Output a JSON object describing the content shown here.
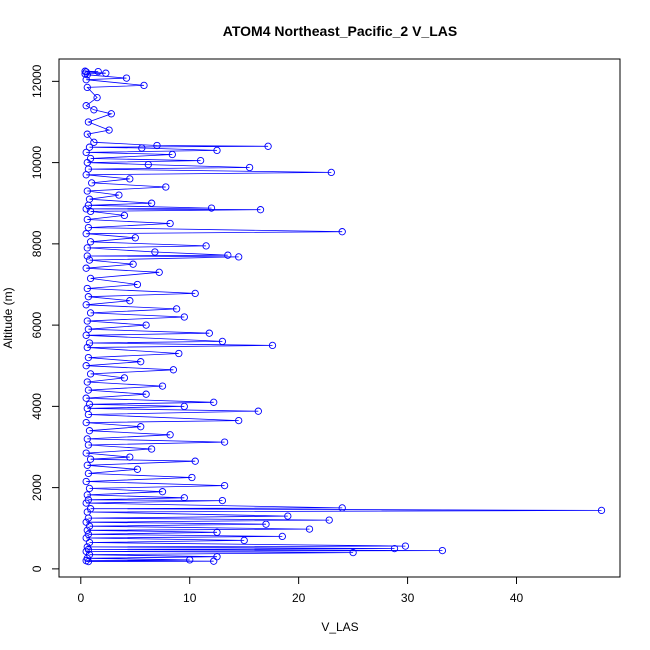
{
  "chart_data": {
    "type": "line",
    "title": "ATOM4 Northeast_Pacific_2 V_LAS",
    "xlabel": "V_LAS",
    "ylabel": "Altitude (m)",
    "xlim": [
      -2.0,
      49.5
    ],
    "ylim": [
      -200,
      12550
    ],
    "x_ticks": [
      0,
      10,
      20,
      30,
      40
    ],
    "y_ticks": [
      0,
      2000,
      4000,
      6000,
      8000,
      10000,
      12000
    ],
    "x_tick_labels": [
      "0",
      "10",
      "20",
      "30",
      "40"
    ],
    "y_tick_labels": [
      "0",
      "2000",
      "4000",
      "6000",
      "8000",
      "10000",
      "12000"
    ],
    "grid": false,
    "legend": "none",
    "marker": "open-circle",
    "colors": {
      "series": "#0000ff",
      "axis": "#000000",
      "background": "#ffffff"
    },
    "series": [
      {
        "points": [
          [
            0.4,
            12250
          ],
          [
            1.6,
            12240
          ],
          [
            0.5,
            12230
          ],
          [
            2.3,
            12200
          ],
          [
            0.4,
            12180
          ],
          [
            0.6,
            12160
          ],
          [
            4.2,
            12080
          ],
          [
            0.5,
            12040
          ],
          [
            5.8,
            11900
          ],
          [
            0.6,
            11850
          ],
          [
            1.5,
            11600
          ],
          [
            0.5,
            11400
          ],
          [
            1.2,
            11300
          ],
          [
            2.8,
            11200
          ],
          [
            0.7,
            11000
          ],
          [
            2.6,
            10800
          ],
          [
            0.6,
            10700
          ],
          [
            1.2,
            10500
          ],
          [
            7.0,
            10420
          ],
          [
            17.2,
            10400
          ],
          [
            0.8,
            10380
          ],
          [
            5.6,
            10360
          ],
          [
            12.5,
            10300
          ],
          [
            0.5,
            10250
          ],
          [
            8.4,
            10200
          ],
          [
            0.9,
            10100
          ],
          [
            11.0,
            10050
          ],
          [
            0.6,
            10000
          ],
          [
            6.2,
            9950
          ],
          [
            15.5,
            9880
          ],
          [
            0.7,
            9840
          ],
          [
            23.0,
            9760
          ],
          [
            0.5,
            9700
          ],
          [
            4.5,
            9600
          ],
          [
            1.0,
            9500
          ],
          [
            7.8,
            9400
          ],
          [
            0.6,
            9300
          ],
          [
            3.5,
            9200
          ],
          [
            0.8,
            9100
          ],
          [
            6.5,
            9000
          ],
          [
            0.7,
            8950
          ],
          [
            12.0,
            8880
          ],
          [
            0.5,
            8860
          ],
          [
            16.5,
            8840
          ],
          [
            0.9,
            8800
          ],
          [
            4.0,
            8700
          ],
          [
            0.6,
            8600
          ],
          [
            8.2,
            8500
          ],
          [
            0.7,
            8400
          ],
          [
            24.0,
            8300
          ],
          [
            0.5,
            8250
          ],
          [
            5.0,
            8150
          ],
          [
            0.9,
            8050
          ],
          [
            11.5,
            7950
          ],
          [
            0.6,
            7900
          ],
          [
            6.8,
            7800
          ],
          [
            13.5,
            7720
          ],
          [
            0.6,
            7700
          ],
          [
            14.5,
            7680
          ],
          [
            0.8,
            7600
          ],
          [
            4.8,
            7500
          ],
          [
            0.5,
            7400
          ],
          [
            7.2,
            7300
          ],
          [
            0.9,
            7150
          ],
          [
            5.2,
            7000
          ],
          [
            0.6,
            6900
          ],
          [
            10.5,
            6780
          ],
          [
            0.7,
            6700
          ],
          [
            4.5,
            6600
          ],
          [
            0.5,
            6500
          ],
          [
            8.8,
            6400
          ],
          [
            0.9,
            6300
          ],
          [
            9.5,
            6200
          ],
          [
            0.6,
            6100
          ],
          [
            6.0,
            6000
          ],
          [
            0.7,
            5900
          ],
          [
            11.8,
            5800
          ],
          [
            0.5,
            5750
          ],
          [
            13.0,
            5600
          ],
          [
            0.8,
            5560
          ],
          [
            17.6,
            5500
          ],
          [
            0.6,
            5450
          ],
          [
            9.0,
            5300
          ],
          [
            0.7,
            5200
          ],
          [
            5.5,
            5100
          ],
          [
            0.5,
            5000
          ],
          [
            8.5,
            4900
          ],
          [
            0.9,
            4800
          ],
          [
            4.0,
            4700
          ],
          [
            0.6,
            4600
          ],
          [
            7.5,
            4500
          ],
          [
            0.7,
            4400
          ],
          [
            6.0,
            4300
          ],
          [
            0.5,
            4200
          ],
          [
            12.2,
            4100
          ],
          [
            0.8,
            4050
          ],
          [
            9.5,
            4000
          ],
          [
            0.6,
            3950
          ],
          [
            16.3,
            3880
          ],
          [
            0.7,
            3800
          ],
          [
            14.5,
            3650
          ],
          [
            0.5,
            3600
          ],
          [
            5.5,
            3500
          ],
          [
            0.8,
            3400
          ],
          [
            8.2,
            3300
          ],
          [
            0.6,
            3200
          ],
          [
            13.2,
            3120
          ],
          [
            0.7,
            3050
          ],
          [
            6.5,
            2950
          ],
          [
            0.5,
            2850
          ],
          [
            4.5,
            2750
          ],
          [
            0.9,
            2700
          ],
          [
            10.5,
            2650
          ],
          [
            0.6,
            2550
          ],
          [
            5.2,
            2450
          ],
          [
            0.7,
            2350
          ],
          [
            10.2,
            2250
          ],
          [
            0.5,
            2150
          ],
          [
            13.2,
            2050
          ],
          [
            0.8,
            1980
          ],
          [
            7.5,
            1900
          ],
          [
            0.6,
            1820
          ],
          [
            9.5,
            1750
          ],
          [
            0.7,
            1700
          ],
          [
            13.0,
            1680
          ],
          [
            0.5,
            1620
          ],
          [
            24.0,
            1500
          ],
          [
            0.9,
            1480
          ],
          [
            47.8,
            1440
          ],
          [
            0.6,
            1400
          ],
          [
            19.0,
            1300
          ],
          [
            0.7,
            1250
          ],
          [
            22.8,
            1200
          ],
          [
            0.5,
            1150
          ],
          [
            17.0,
            1100
          ],
          [
            0.8,
            1050
          ],
          [
            21.0,
            980
          ],
          [
            0.6,
            950
          ],
          [
            12.5,
            900
          ],
          [
            0.7,
            850
          ],
          [
            18.5,
            800
          ],
          [
            0.5,
            760
          ],
          [
            15.0,
            700
          ],
          [
            0.8,
            650
          ],
          [
            29.8,
            560
          ],
          [
            0.6,
            540
          ],
          [
            28.8,
            500
          ],
          [
            0.7,
            480
          ],
          [
            33.2,
            450
          ],
          [
            0.5,
            430
          ],
          [
            25.0,
            400
          ],
          [
            0.8,
            350
          ],
          [
            12.5,
            300
          ],
          [
            0.6,
            260
          ],
          [
            10.0,
            220
          ],
          [
            0.5,
            200
          ],
          [
            12.2,
            190
          ],
          [
            0.7,
            180
          ]
        ]
      }
    ]
  }
}
